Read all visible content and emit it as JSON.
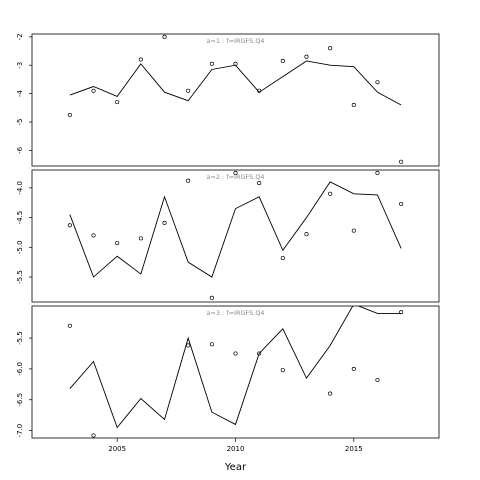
{
  "chart_data": {
    "type": "line",
    "xlabel": "Year",
    "xlim": [
      2001.4,
      2018.6
    ],
    "x_ticks": [
      2005,
      2010,
      2015
    ],
    "panels": [
      {
        "label": "a=1  :  f=IRGFS.Q4",
        "ylim": [
          -6.55,
          -1.9
        ],
        "y_ticks": [
          -2,
          -3,
          -4,
          -5,
          -6
        ],
        "line": {
          "x": [
            2003,
            2004,
            2005,
            2006,
            2007,
            2008,
            2009,
            2010,
            2011,
            2012,
            2013,
            2014,
            2015,
            2016,
            2017
          ],
          "y": [
            -4.05,
            -3.75,
            -4.1,
            -2.95,
            -3.95,
            -4.25,
            -3.15,
            -3.0,
            -3.95,
            -3.4,
            -2.85,
            -3.0,
            -3.05,
            -3.95,
            -4.4
          ]
        },
        "points": {
          "x": [
            2003,
            2004,
            2005,
            2006,
            2007,
            2008,
            2009,
            2010,
            2011,
            2012,
            2013,
            2014,
            2015,
            2016,
            2017
          ],
          "y": [
            -4.75,
            -3.9,
            -4.3,
            -2.8,
            -2.0,
            -3.9,
            -2.95,
            -2.95,
            -3.9,
            -2.85,
            -2.7,
            -2.4,
            -4.4,
            -3.6,
            -6.4
          ]
        }
      },
      {
        "label": "a=2  :  f=IRGFS.Q4",
        "ylim": [
          -5.92,
          -3.7
        ],
        "y_ticks": [
          -4.0,
          -4.5,
          -5.0,
          -5.5
        ],
        "line": {
          "x": [
            2003,
            2004,
            2005,
            2006,
            2007,
            2008,
            2009,
            2010,
            2011,
            2012,
            2013,
            2014,
            2015,
            2016,
            2017
          ],
          "y": [
            -4.45,
            -5.5,
            -5.15,
            -5.45,
            -4.15,
            -5.25,
            -5.5,
            -4.35,
            -4.15,
            -5.05,
            -4.5,
            -3.9,
            -4.1,
            -4.12,
            -5.02
          ]
        },
        "points": {
          "x": [
            2003,
            2004,
            2005,
            2006,
            2007,
            2008,
            2009,
            2010,
            2011,
            2012,
            2013,
            2014,
            2015,
            2016,
            2017
          ],
          "y": [
            -4.63,
            -4.8,
            -4.93,
            -4.85,
            -4.59,
            -3.88,
            -5.85,
            -3.75,
            -3.92,
            -5.18,
            -4.78,
            -4.1,
            -4.72,
            -3.75,
            -4.27
          ]
        }
      },
      {
        "label": "a=3  :  f=IRGFS.Q4",
        "ylim": [
          -7.12,
          -4.98
        ],
        "y_ticks": [
          -5.5,
          -6.0,
          -6.5,
          -7.0
        ],
        "line": {
          "x": [
            2003,
            2004,
            2005,
            2006,
            2007,
            2008,
            2009,
            2010,
            2011,
            2012,
            2013,
            2014,
            2015,
            2016,
            2017
          ],
          "y": [
            -6.32,
            -5.88,
            -6.95,
            -6.48,
            -6.82,
            -5.5,
            -6.7,
            -6.9,
            -5.75,
            -5.35,
            -6.15,
            -5.62,
            -4.95,
            -5.1,
            -5.1
          ]
        },
        "points": {
          "x": [
            2003,
            2004,
            2005,
            2006,
            2007,
            2008,
            2009,
            2010,
            2011,
            2012,
            2013,
            2014,
            2015,
            2016,
            2017
          ],
          "y": [
            -5.3,
            -7.08,
            -4.7,
            -4.5,
            -4.88,
            -5.62,
            -5.6,
            -5.75,
            -5.75,
            -6.02,
            -4.7,
            -6.4,
            -6.0,
            -6.18,
            -5.08
          ]
        }
      }
    ]
  }
}
